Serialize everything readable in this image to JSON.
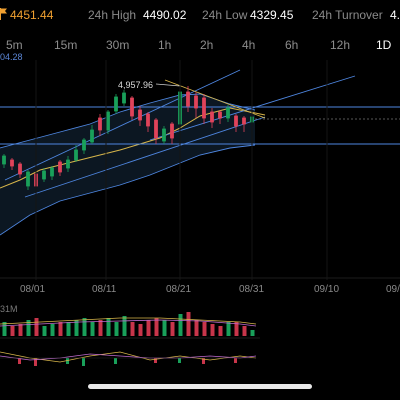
{
  "stats": {
    "last_price": "4451.44",
    "h24_high_label": "24h High",
    "h24_high_value": "4490.02",
    "h24_low_label": "24h Low",
    "h24_low_value": "4329.45",
    "turnover_label": "24h Turnover",
    "turnover_value": "4.",
    "flag_icon": "flag-icon",
    "price_color": "#f0a030"
  },
  "tabs": [
    {
      "label": "5m"
    },
    {
      "label": "15m"
    },
    {
      "label": "30m"
    },
    {
      "label": "1h"
    },
    {
      "label": "2h"
    },
    {
      "label": "4h"
    },
    {
      "label": "6h"
    },
    {
      "label": "12h"
    },
    {
      "label": "1D",
      "active": true
    }
  ],
  "chart": {
    "partial_price_label": "04.28",
    "high_marker": "4,957.96",
    "volume_label": "31M",
    "x_ticks": [
      "08/01",
      "08/11",
      "08/21",
      "08/31",
      "09/10",
      "09/"
    ],
    "colors": {
      "up": "#19a05a",
      "down": "#e0435a",
      "line_blue": "#4e86e0",
      "ma_yellow": "#d8b64a"
    }
  }
}
